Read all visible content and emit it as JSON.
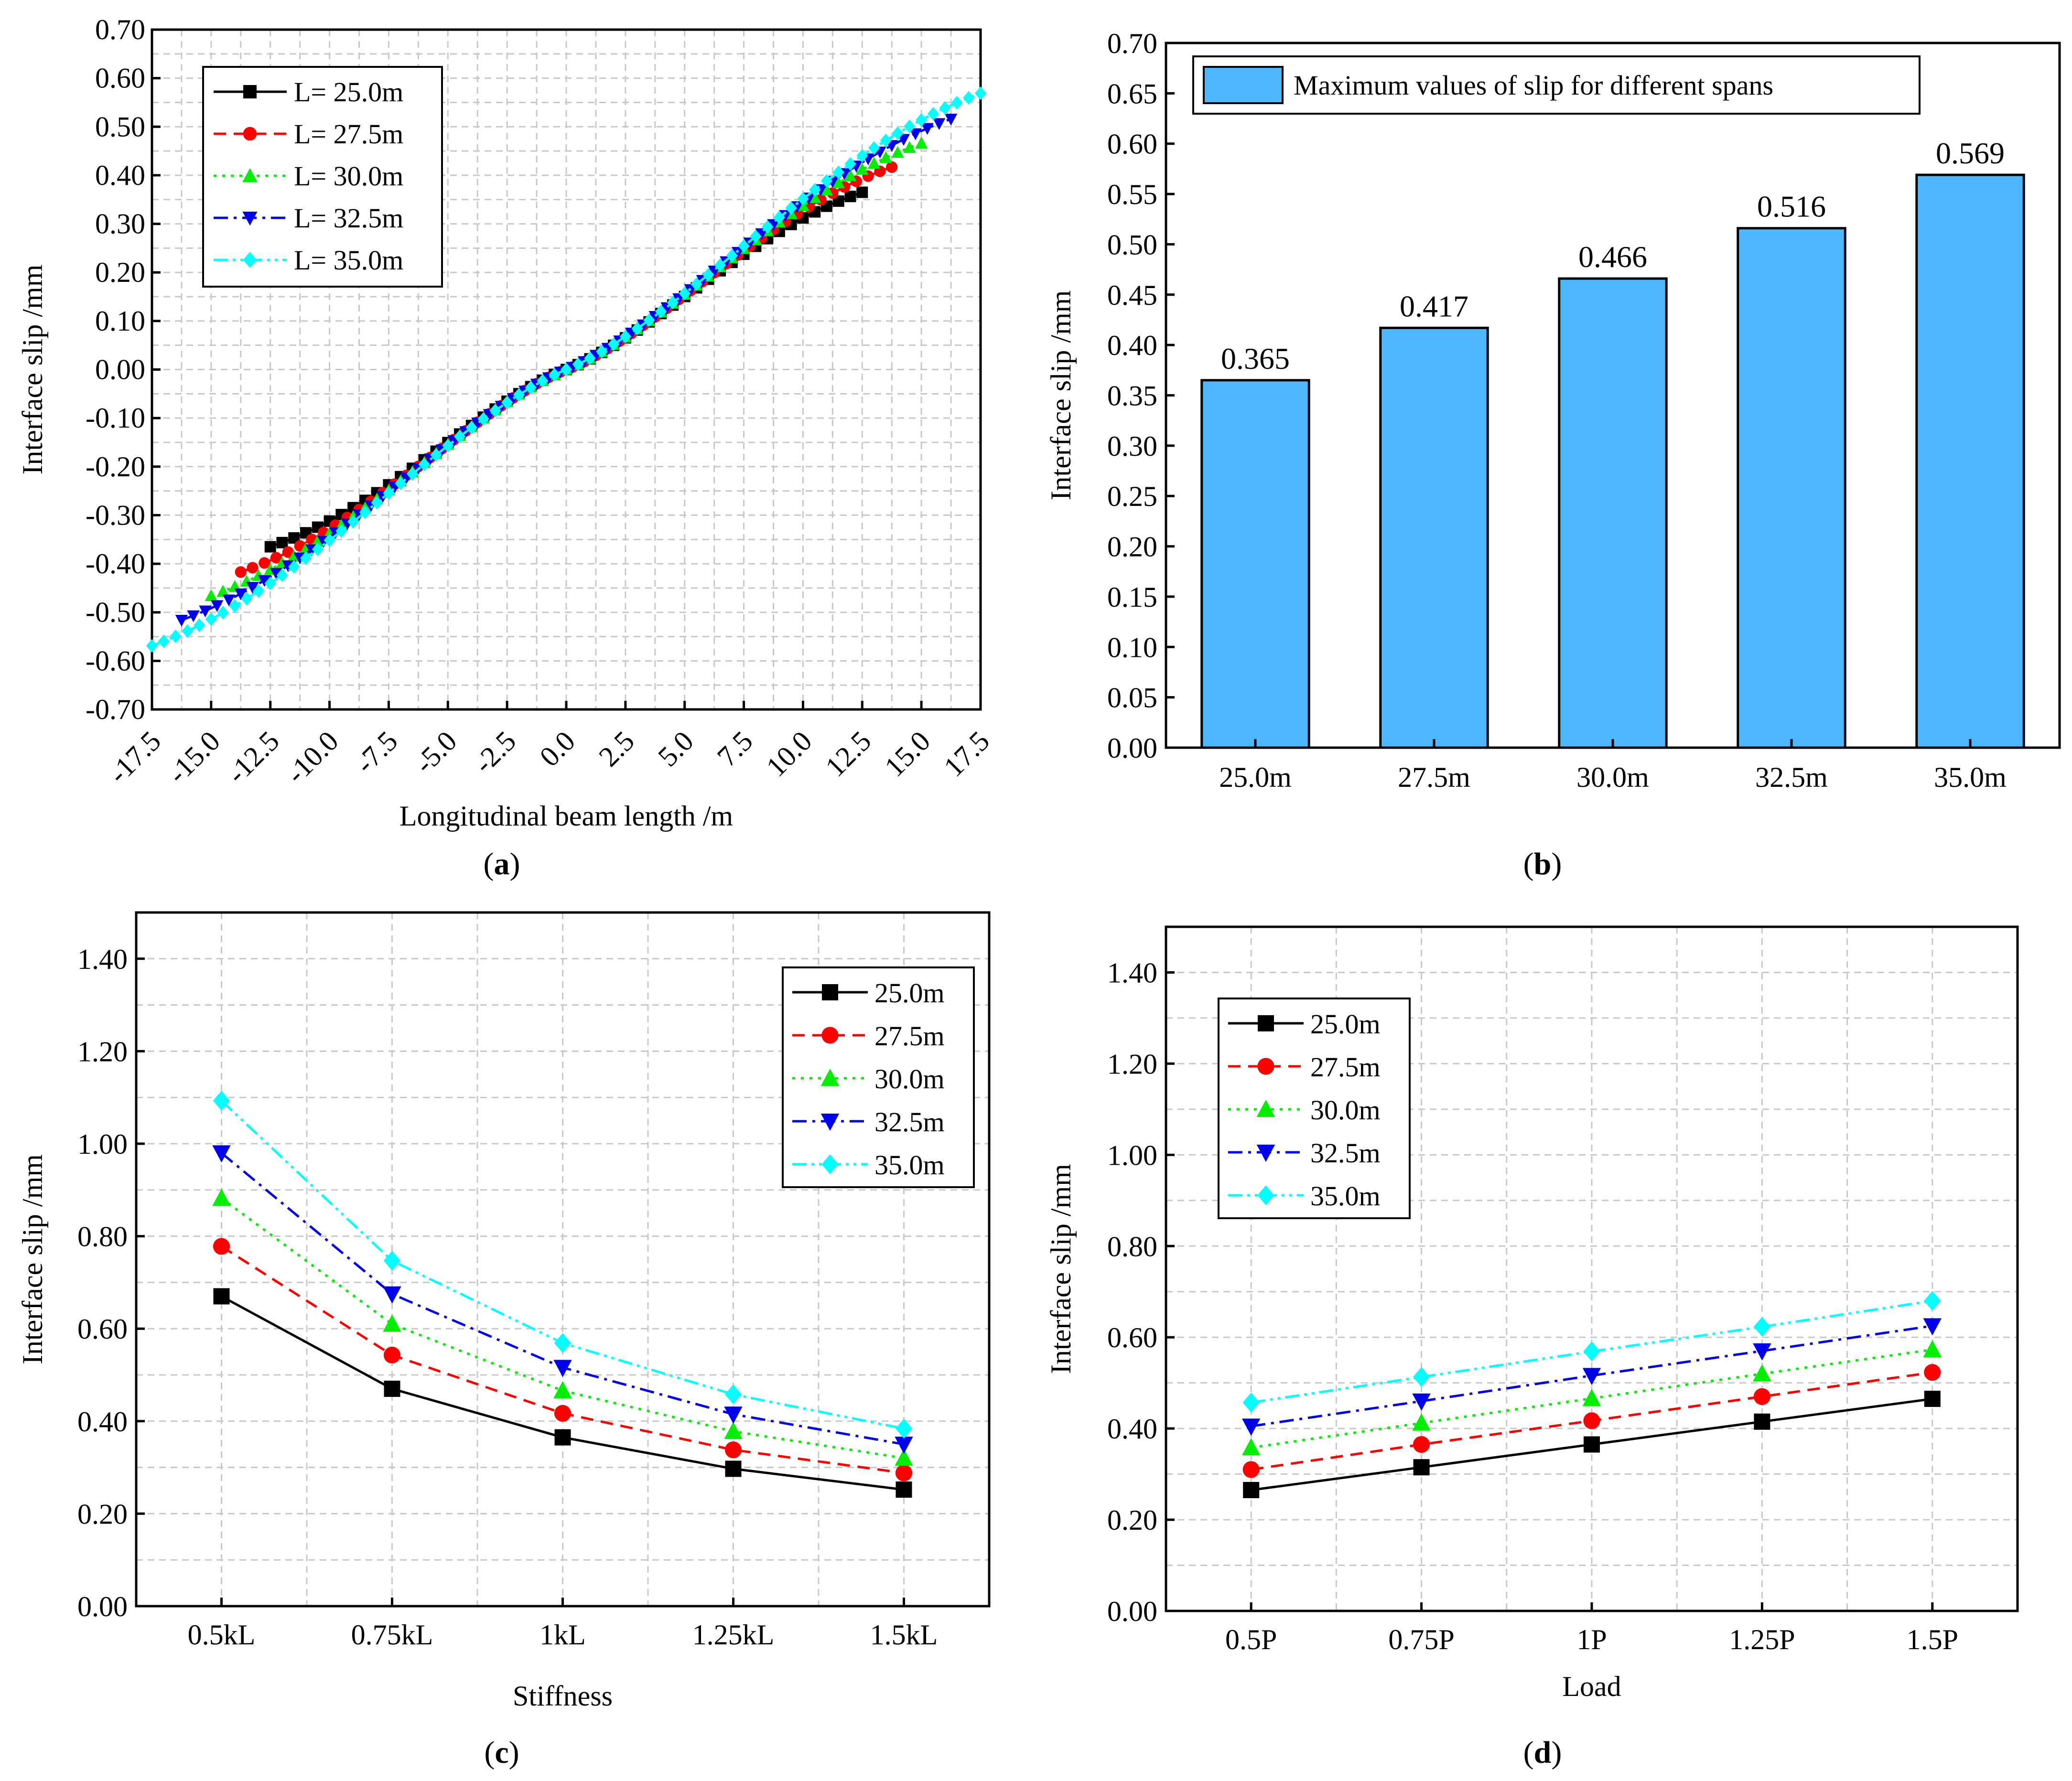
{
  "colors": {
    "s25": "#000000",
    "s275": "#ff0000",
    "s30": "#00ee00",
    "s325": "#0000ee",
    "s35": "#00ffff",
    "bar": "#4db8ff"
  },
  "chart_data": [
    {
      "id": "a",
      "type": "line",
      "panel_label": "a",
      "xlabel": "Longitudinal beam length /m",
      "ylabel": "Interface slip /mm",
      "xlim": [
        -17.5,
        17.5
      ],
      "ylim": [
        -0.7,
        0.7
      ],
      "xticks": [
        -17.5,
        -15.0,
        -12.5,
        -10.0,
        -7.5,
        -5.0,
        -2.5,
        0.0,
        2.5,
        5.0,
        7.5,
        10.0,
        12.5,
        15.0,
        17.5
      ],
      "xtick_labels": [
        "-17.5",
        "-15.0",
        "-12.5",
        "-10.0",
        "-7.5",
        "-5.0",
        "-2.5",
        "0.0",
        "2.5",
        "5.0",
        "7.5",
        "10.0",
        "12.5",
        "15.0",
        "17.5"
      ],
      "yticks": [
        -0.7,
        -0.6,
        -0.5,
        -0.4,
        -0.3,
        -0.2,
        -0.1,
        0.0,
        0.1,
        0.2,
        0.3,
        0.4,
        0.5,
        0.6,
        0.7
      ],
      "ytick_labels": [
        "-0.70",
        "-0.60",
        "-0.50",
        "-0.40",
        "-0.30",
        "-0.20",
        "-0.10",
        "0.00",
        "0.10",
        "0.20",
        "0.30",
        "0.40",
        "0.50",
        "0.60",
        "0.70"
      ],
      "legend": "top-left",
      "series": [
        {
          "name": "L= 25.0m",
          "half_length": 12.5,
          "max": 0.365,
          "color_key": "s25",
          "marker": "square",
          "dash": "solid"
        },
        {
          "name": "L= 27.5m",
          "half_length": 13.75,
          "max": 0.417,
          "color_key": "s275",
          "marker": "circle",
          "dash": "dash"
        },
        {
          "name": "L= 30.0m",
          "half_length": 15.0,
          "max": 0.466,
          "color_key": "s30",
          "marker": "triangle-up",
          "dash": "dot"
        },
        {
          "name": "L= 32.5m",
          "half_length": 16.25,
          "max": 0.516,
          "color_key": "s325",
          "marker": "triangle-down",
          "dash": "dashdot"
        },
        {
          "name": "L= 35.0m",
          "half_length": 17.5,
          "max": 0.569,
          "color_key": "s35",
          "marker": "diamond",
          "dash": "dashdotdot"
        }
      ]
    },
    {
      "id": "b",
      "type": "bar",
      "panel_label": "b",
      "xlabel": "",
      "ylabel": "Interface slip /mm",
      "legend_label": "Maximum values of slip for different spans",
      "categories": [
        "25.0m",
        "27.5m",
        "30.0m",
        "32.5m",
        "35.0m"
      ],
      "values": [
        0.365,
        0.417,
        0.466,
        0.516,
        0.569
      ],
      "value_labels": [
        "0.365",
        "0.417",
        "0.466",
        "0.516",
        "0.569"
      ],
      "ylim": [
        0.0,
        0.7
      ],
      "yticks": [
        0.0,
        0.05,
        0.1,
        0.15,
        0.2,
        0.25,
        0.3,
        0.35,
        0.4,
        0.45,
        0.5,
        0.55,
        0.6,
        0.65,
        0.7
      ],
      "ytick_labels": [
        "0.00",
        "0.05",
        "0.10",
        "0.15",
        "0.20",
        "0.25",
        "0.30",
        "0.35",
        "0.40",
        "0.45",
        "0.50",
        "0.55",
        "0.60",
        "0.65",
        "0.70"
      ],
      "legend": "top-left"
    },
    {
      "id": "c",
      "type": "line",
      "panel_label": "c",
      "xlabel": "Stiffness",
      "ylabel": "Interface slip /mm",
      "categories": [
        "0.5kL",
        "0.75kL",
        "1kL",
        "1.25kL",
        "1.5kL"
      ],
      "ylim": [
        0.0,
        1.5
      ],
      "yticks": [
        0.0,
        0.2,
        0.4,
        0.6,
        0.8,
        1.0,
        1.2,
        1.4
      ],
      "ytick_labels": [
        "0.00",
        "0.20",
        "0.40",
        "0.60",
        "0.80",
        "1.00",
        "1.20",
        "1.40"
      ],
      "legend": "top-right",
      "series": [
        {
          "name": "25.0m",
          "values": [
            0.67,
            0.47,
            0.365,
            0.297,
            0.252
          ],
          "color_key": "s25",
          "marker": "square",
          "dash": "solid"
        },
        {
          "name": "27.5m",
          "values": [
            0.778,
            0.543,
            0.417,
            0.338,
            0.288
          ],
          "color_key": "s275",
          "marker": "circle",
          "dash": "dash"
        },
        {
          "name": "30.0m",
          "values": [
            0.882,
            0.61,
            0.466,
            0.378,
            0.32
          ],
          "color_key": "s30",
          "marker": "triangle-up",
          "dash": "dot"
        },
        {
          "name": "32.5m",
          "values": [
            0.98,
            0.675,
            0.516,
            0.415,
            0.35
          ],
          "color_key": "s325",
          "marker": "triangle-down",
          "dash": "dashdot"
        },
        {
          "name": "35.0m",
          "values": [
            1.093,
            0.747,
            0.569,
            0.458,
            0.384
          ],
          "color_key": "s35",
          "marker": "diamond",
          "dash": "dashdotdot"
        }
      ]
    },
    {
      "id": "d",
      "type": "line",
      "panel_label": "d",
      "xlabel": "Load",
      "ylabel": "Interface slip /mm",
      "categories": [
        "0.5P",
        "0.75P",
        "1P",
        "1.25P",
        "1.5P"
      ],
      "ylim": [
        0.0,
        1.5
      ],
      "yticks": [
        0.0,
        0.2,
        0.4,
        0.6,
        0.8,
        1.0,
        1.2,
        1.4
      ],
      "ytick_labels": [
        "0.00",
        "0.20",
        "0.40",
        "0.60",
        "0.80",
        "1.00",
        "1.20",
        "1.40"
      ],
      "legend": "top-left",
      "series": [
        {
          "name": "25.0m",
          "values": [
            0.265,
            0.315,
            0.365,
            0.415,
            0.465
          ],
          "color_key": "s25",
          "marker": "square",
          "dash": "solid"
        },
        {
          "name": "27.5m",
          "values": [
            0.31,
            0.365,
            0.417,
            0.47,
            0.523
          ],
          "color_key": "s275",
          "marker": "circle",
          "dash": "dash"
        },
        {
          "name": "30.0m",
          "values": [
            0.358,
            0.412,
            0.466,
            0.52,
            0.573
          ],
          "color_key": "s30",
          "marker": "triangle-up",
          "dash": "dot"
        },
        {
          "name": "32.5m",
          "values": [
            0.405,
            0.46,
            0.516,
            0.57,
            0.625
          ],
          "color_key": "s325",
          "marker": "triangle-down",
          "dash": "dashdot"
        },
        {
          "name": "35.0m",
          "values": [
            0.457,
            0.513,
            0.569,
            0.623,
            0.68
          ],
          "color_key": "s35",
          "marker": "diamond",
          "dash": "dashdotdot"
        }
      ]
    }
  ]
}
